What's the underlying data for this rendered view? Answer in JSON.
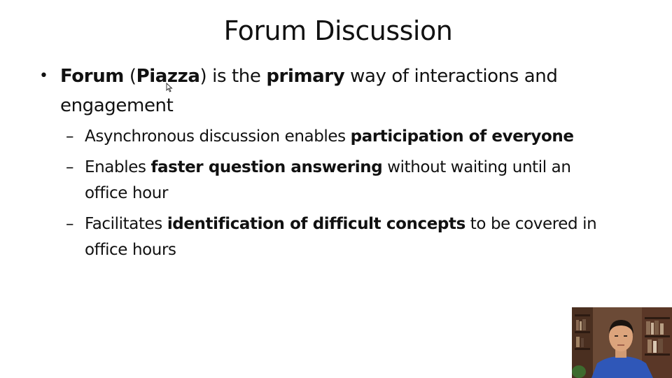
{
  "slide": {
    "title": "Forum Discussion",
    "bullet": {
      "parts": [
        {
          "text": "Forum",
          "bold": true
        },
        {
          "text": " (",
          "bold": false
        },
        {
          "text": "Piazza",
          "bold": true
        },
        {
          "text": ") is the ",
          "bold": false
        },
        {
          "text": "primary",
          "bold": true
        },
        {
          "text": " way of interactions and engagement",
          "bold": false
        }
      ]
    },
    "sub_bullets": [
      {
        "parts": [
          {
            "text": "Asynchronous discussion enables ",
            "bold": false
          },
          {
            "text": "participation of everyone",
            "bold": true
          }
        ]
      },
      {
        "parts": [
          {
            "text": "Enables ",
            "bold": false
          },
          {
            "text": "faster question answering",
            "bold": true
          },
          {
            "text": " without waiting until an office hour",
            "bold": false
          }
        ]
      },
      {
        "parts": [
          {
            "text": "Facilitates ",
            "bold": false
          },
          {
            "text": "identification of difficult concepts",
            "bold": true
          },
          {
            "text": " to be covered in office hours",
            "bold": false
          }
        ]
      }
    ],
    "bullet_glyph": "•",
    "dash_glyph": "–"
  },
  "icons": {
    "cursor": "mouse-pointer-icon",
    "webcam": "presenter-webcam-icon"
  },
  "colors": {
    "text": "#111111",
    "background": "#ffffff"
  }
}
